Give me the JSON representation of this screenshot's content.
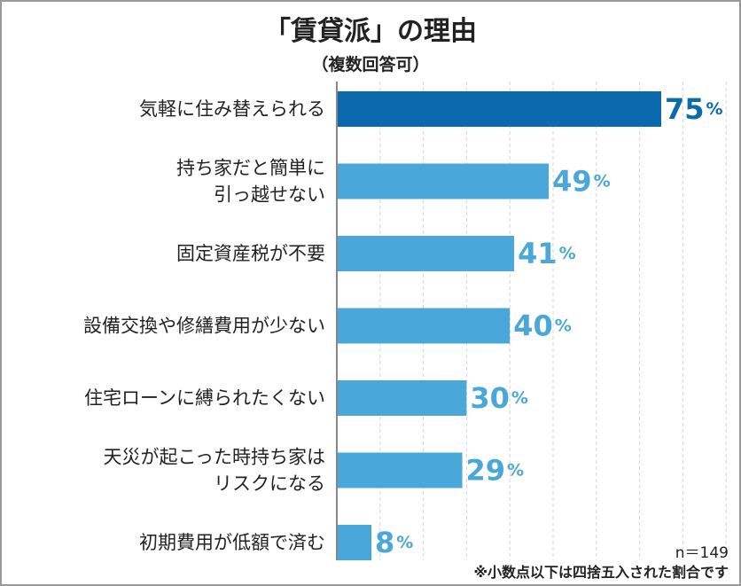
{
  "title": "「賃貸派」の理由",
  "subtitle": "（複数回答可）",
  "n_note": "n＝149",
  "footnote": "※小数点以下は四捨五入された割合です",
  "colors": {
    "highlight": "#0a6aad",
    "bar": "#4aa7d9",
    "grid": "#d6d6d6",
    "axis": "#888888"
  },
  "chart_data": {
    "type": "bar",
    "orientation": "horizontal",
    "unit": "%",
    "xlim": [
      0,
      100
    ],
    "categories": [
      [
        "気軽に住み替えられる"
      ],
      [
        "持ち家だと簡単に",
        "引っ越せない"
      ],
      [
        "固定資産税が不要"
      ],
      [
        "設備交換や修繕費用が少ない"
      ],
      [
        "住宅ローンに縛られたくない"
      ],
      [
        "天災が起こった時持ち家は",
        "リスクになる"
      ],
      [
        "初期費用が低額で済む"
      ]
    ],
    "values": [
      75,
      49,
      41,
      40,
      30,
      29,
      8
    ],
    "highlight_index": 0
  }
}
